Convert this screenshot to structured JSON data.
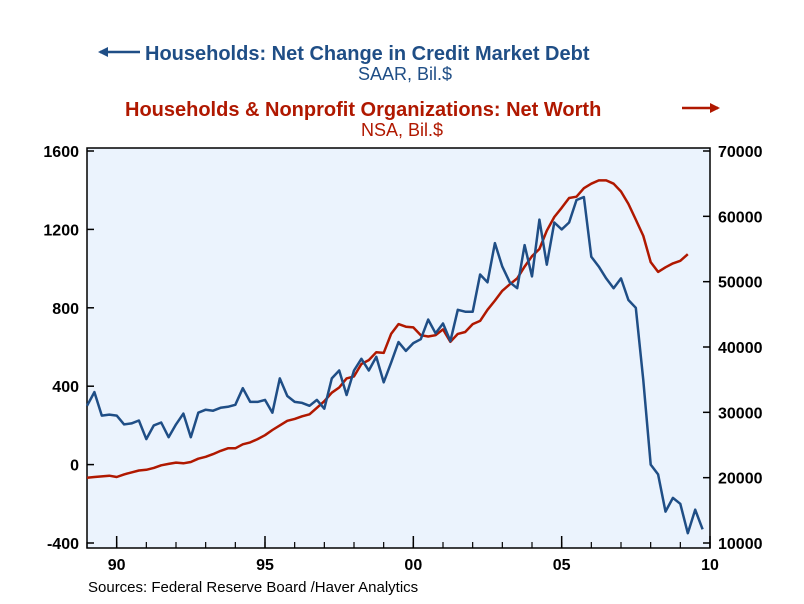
{
  "chart_data": {
    "type": "line",
    "left_series": {
      "name": "Households: Net Change in Credit Market Debt",
      "unit_label": "SAAR, Bil.$",
      "color": "#1f4e86",
      "axis": "left",
      "frequency": "quarterly",
      "start": "1989-Q1",
      "values": [
        300,
        370,
        250,
        255,
        250,
        205,
        210,
        225,
        130,
        200,
        215,
        140,
        205,
        260,
        140,
        265,
        280,
        275,
        290,
        295,
        305,
        390,
        320,
        320,
        330,
        265,
        440,
        350,
        320,
        315,
        300,
        330,
        285,
        440,
        480,
        355,
        480,
        540,
        480,
        550,
        420,
        520,
        625,
        580,
        620,
        640,
        740,
        670,
        720,
        630,
        790,
        780,
        780,
        970,
        930,
        1130,
        1010,
        930,
        900,
        1120,
        960,
        1250,
        1020,
        1235,
        1200,
        1235,
        1350,
        1365,
        1060,
        1010,
        950,
        900,
        950,
        840,
        800,
        430,
        0,
        -50,
        -240,
        -170,
        -200,
        -350,
        -230,
        -330
      ]
    },
    "right_series": {
      "name": "Households & Nonprofit Organizations: Net Worth",
      "unit_label": "NSA, Bil.$",
      "color": "#b01800",
      "axis": "right",
      "frequency": "quarterly",
      "start": "1989-Q1",
      "values": [
        20000,
        20100,
        20200,
        20300,
        20100,
        20500,
        20800,
        21100,
        21200,
        21500,
        21900,
        22100,
        22300,
        22200,
        22400,
        22900,
        23200,
        23600,
        24100,
        24500,
        24500,
        25100,
        25400,
        25900,
        26500,
        27300,
        28000,
        28700,
        29000,
        29400,
        29700,
        30700,
        31700,
        33000,
        33800,
        35200,
        35500,
        37400,
        38000,
        39200,
        39100,
        42000,
        43500,
        43100,
        43000,
        41800,
        41600,
        41800,
        42700,
        40800,
        42000,
        42300,
        43500,
        44000,
        45700,
        47100,
        48600,
        49600,
        50500,
        52300,
        53900,
        55000,
        57800,
        59900,
        61300,
        62800,
        63000,
        64300,
        65000,
        65500,
        65500,
        65000,
        63800,
        61900,
        59500,
        57000,
        53000,
        51500,
        52200,
        52800,
        53200,
        54200
      ],
      "note": ""
    },
    "x_axis": {
      "tick_labels": [
        "90",
        "95",
        "00",
        "05",
        "10"
      ],
      "range": [
        "1989-Q1",
        "2010-Q1"
      ]
    },
    "y_left": {
      "ylim": [
        -400,
        1600
      ],
      "tick_labels": [
        "-400",
        "0",
        "400",
        "800",
        "1200",
        "1600"
      ]
    },
    "y_right": {
      "ylim": [
        10000,
        70000
      ],
      "tick_labels": [
        "10000",
        "20000",
        "30000",
        "40000",
        "50000",
        "60000",
        "70000"
      ]
    },
    "grid": false,
    "plot_background": "#ebf3fd"
  },
  "legend": {
    "left": {
      "arrow": "←",
      "title": "Households: Net Change in Credit Market Debt",
      "subtitle": "SAAR, Bil.$"
    },
    "right": {
      "arrow": "→",
      "title": "Households & Nonprofit Organizations: Net Worth",
      "subtitle": "NSA, Bil.$"
    }
  },
  "source_note": "Sources:  Federal Reserve Board /Haver Analytics"
}
